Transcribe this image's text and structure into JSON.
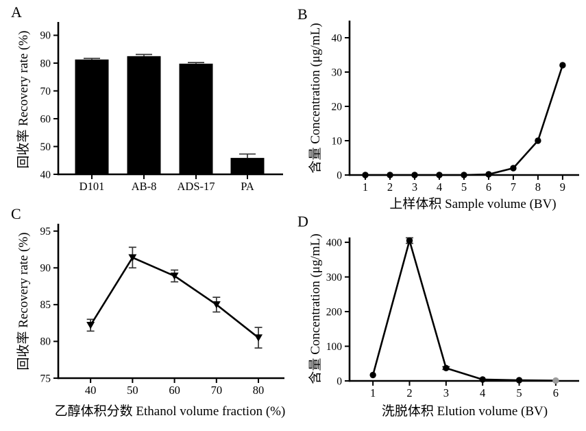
{
  "figure": {
    "background": "#ffffff",
    "ink_color": "#000000",
    "error_bar_color": "#333333"
  },
  "chart_data": [
    {
      "panel": "A",
      "type": "bar",
      "ylabel": "回收率 Recovery rate (%)",
      "xlabel": "",
      "categories": [
        "D101",
        "AB-8",
        "ADS-17",
        "PA"
      ],
      "values": [
        81.3,
        82.5,
        79.8,
        45.9
      ],
      "errors": [
        0.4,
        0.6,
        0.4,
        1.4
      ],
      "yticks": [
        40,
        50,
        60,
        70,
        80,
        90
      ],
      "ylim": [
        40,
        94.8
      ],
      "bar_color": "#000000",
      "grid": false,
      "legend": "none"
    },
    {
      "panel": "B",
      "type": "line",
      "ylabel": "含量 Concentration (μg/mL)",
      "xlabel": "上样体积 Sample volume (BV)",
      "x": [
        1,
        2,
        3,
        4,
        5,
        6,
        7,
        8,
        9
      ],
      "y": [
        0,
        0,
        0,
        0,
        0,
        0.2,
        2,
        10,
        32
      ],
      "errors": [
        0,
        0,
        0,
        0,
        0,
        0,
        0,
        0,
        0
      ],
      "xticks": [
        1,
        2,
        3,
        4,
        5,
        6,
        7,
        8,
        9
      ],
      "yticks": [
        0,
        10,
        20,
        30,
        40
      ],
      "ylim": [
        0,
        45
      ],
      "xlim": [
        0.36,
        9.67
      ],
      "marker": "circle",
      "line_color": "#000000",
      "grid": false,
      "legend": "none"
    },
    {
      "panel": "C",
      "type": "line",
      "ylabel": "回收率 Recovery rate (%)",
      "xlabel": "乙醇体积分数 Ethanol volume fraction (%)",
      "x": [
        40,
        50,
        60,
        70,
        80
      ],
      "y": [
        82.2,
        91.4,
        88.9,
        85.0,
        80.5
      ],
      "errors": [
        0.8,
        1.4,
        0.8,
        1.0,
        1.4
      ],
      "xticks": [
        40,
        50,
        60,
        70,
        80
      ],
      "yticks": [
        75,
        80,
        85,
        90,
        95
      ],
      "ylim": [
        75,
        96
      ],
      "xlim": [
        32.3,
        86.2
      ],
      "marker": "triangle-down",
      "line_color": "#000000",
      "grid": false,
      "legend": "none"
    },
    {
      "panel": "D",
      "type": "line",
      "ylabel": "含量 Concentration (μg/mL)",
      "xlabel": "洗脱体积 Elution volume (BV)",
      "x": [
        1,
        2,
        3,
        4,
        5,
        6
      ],
      "y": [
        17,
        405,
        37,
        4,
        2,
        1
      ],
      "errors": [
        0,
        8,
        4,
        0,
        0,
        0
      ],
      "xticks": [
        1,
        2,
        3,
        4,
        5,
        6
      ],
      "yticks": [
        0,
        100,
        200,
        300,
        400
      ],
      "ylim": [
        0,
        414
      ],
      "xlim": [
        0.36,
        6.64
      ],
      "marker": "circle",
      "line_color": "#000000",
      "marker_colors": [
        "#000000",
        "#000000",
        "#000000",
        "#000000",
        "#000000",
        "#9c9c9c"
      ],
      "grid": false,
      "legend": "none"
    }
  ]
}
